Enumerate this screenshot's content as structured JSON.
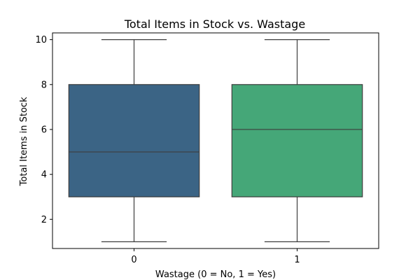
{
  "chart_data": {
    "type": "box",
    "title": "Total Items in Stock vs. Wastage",
    "xlabel": "Wastage (0 = No, 1 = Yes)",
    "ylabel": "Total Items in Stock",
    "categories": [
      "0",
      "1"
    ],
    "boxes": [
      {
        "category": "0",
        "min": 1,
        "q1": 3,
        "median": 5,
        "q3": 8,
        "max": 10,
        "color": "#3b6485"
      },
      {
        "category": "1",
        "min": 1,
        "q1": 3,
        "median": 6,
        "q3": 8,
        "max": 10,
        "color": "#45a778"
      }
    ],
    "yticks": [
      2,
      4,
      6,
      8,
      10
    ],
    "ylim": [
      0.7,
      10.3
    ],
    "grid": false,
    "line_color": "#3d3d3d"
  }
}
